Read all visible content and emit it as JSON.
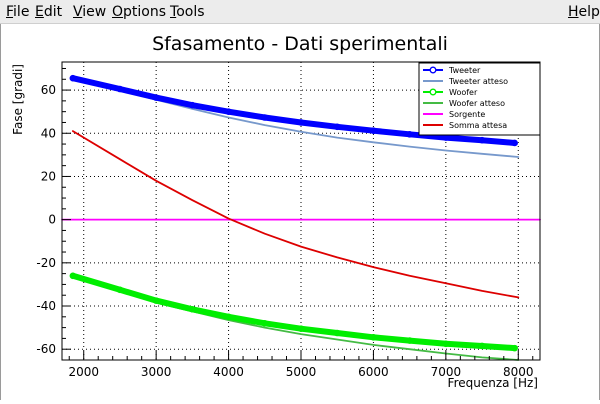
{
  "menubar": {
    "items": [
      {
        "key": "file",
        "accel": "F",
        "rest": "ile"
      },
      {
        "key": "edit",
        "accel": "E",
        "rest": "dit"
      },
      {
        "key": "view",
        "accel": "V",
        "rest": "iew"
      },
      {
        "key": "options",
        "accel": "O",
        "rest": "ptions"
      },
      {
        "key": "tools",
        "accel": "T",
        "rest": "ools"
      }
    ],
    "help": {
      "accel": "H",
      "rest": "elp"
    }
  },
  "chart_data": {
    "type": "line",
    "title": "Sfasamento - Dati sperimentali",
    "xlabel": "Frequenza [Hz]",
    "ylabel": "Fase [gradi]",
    "xlim": [
      1700,
      8300
    ],
    "ylim": [
      -65,
      73
    ],
    "xticks": [
      2000,
      3000,
      4000,
      5000,
      6000,
      7000,
      8000
    ],
    "yticks": [
      -60,
      -40,
      -20,
      0,
      20,
      40,
      60
    ],
    "grid": true,
    "legend_position": "top-right",
    "series": [
      {
        "name": "Tweeter",
        "color": "#0000ff",
        "style": "thick-markers",
        "x": [
          1850,
          2500,
          3000,
          3500,
          4000,
          4500,
          5000,
          5500,
          6000,
          6500,
          7000,
          7500,
          7950
        ],
        "y": [
          65.5,
          60.5,
          56.5,
          53,
          50,
          47.3,
          45,
          43,
          41.2,
          39.5,
          38,
          36.8,
          35.5
        ]
      },
      {
        "name": "Tweeter atteso",
        "color": "#7799cc",
        "style": "line",
        "x": [
          1850,
          2500,
          3000,
          3500,
          4000,
          4500,
          5000,
          5500,
          6000,
          6500,
          7000,
          7500,
          8000
        ],
        "y": [
          66,
          60,
          55.5,
          51.3,
          47.3,
          43.8,
          40.7,
          38,
          35.8,
          33.8,
          32,
          30.5,
          29
        ]
      },
      {
        "name": "Woofer",
        "color": "#00ee00",
        "style": "thick-markers",
        "x": [
          1850,
          2500,
          3000,
          3500,
          4000,
          4500,
          5000,
          5500,
          6000,
          6500,
          7000,
          7500,
          7950
        ],
        "y": [
          -26,
          -32.5,
          -37.5,
          -41.5,
          -45,
          -48,
          -50.5,
          -52.5,
          -54.5,
          -56,
          -57.5,
          -58.5,
          -59.5
        ]
      },
      {
        "name": "Woofer atteso",
        "color": "#44bb44",
        "style": "line",
        "x": [
          1850,
          2500,
          3000,
          3500,
          4000,
          4500,
          5000,
          5500,
          6000,
          6500,
          7000,
          7500,
          8000
        ],
        "y": [
          -26,
          -33,
          -38.5,
          -42.5,
          -46.5,
          -50,
          -53,
          -55.5,
          -58,
          -60,
          -62,
          -63.8,
          -65
        ]
      },
      {
        "name": "Sorgente",
        "color": "#ff00ff",
        "style": "line",
        "x": [
          1700,
          8300
        ],
        "y": [
          0,
          0
        ]
      },
      {
        "name": "Somma attesa",
        "color": "#dd0000",
        "style": "line",
        "x": [
          1850,
          2500,
          3000,
          3500,
          4000,
          4500,
          5000,
          5500,
          6000,
          6500,
          7000,
          7500,
          8000
        ],
        "y": [
          41,
          28,
          18,
          9,
          0.5,
          -6.5,
          -12.5,
          -17.5,
          -22,
          -26,
          -29.5,
          -33,
          -36
        ]
      }
    ]
  }
}
